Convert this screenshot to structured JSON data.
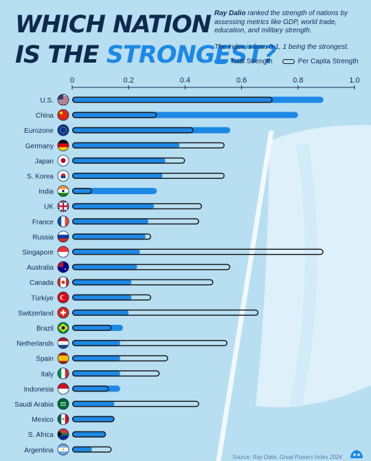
{
  "header": {
    "title_line1": "WHICH NATION",
    "title_line2_a": "IS THE ",
    "title_line2_b": "STRONGEST?",
    "subtitle_author": "Ray Dalio",
    "subtitle_rest": " ranked the strength of nations by assessing metrics like GDP, world trade, education, and military strength.",
    "note": "The index is from 0-1, 1 being the strongest."
  },
  "legend": {
    "total": "Total Strength",
    "per_capita": "Per Capita Strength"
  },
  "source": "Source: Ray Dalio, Great Powers Index 2024",
  "colors": {
    "background": "#b8def2",
    "bar_total": "#1e88e5",
    "bar_outline": "#1a1a1a",
    "text_dark": "#0e2a4c"
  },
  "chart_data": {
    "type": "bar",
    "orientation": "horizontal",
    "xlim": [
      0,
      1.0
    ],
    "ticks": [
      "0",
      "0.2",
      "0.4",
      "0.6",
      "0.8",
      "1.0"
    ],
    "tick_values": [
      0,
      0.2,
      0.4,
      0.6,
      0.8,
      1.0
    ],
    "categories": [
      "U.S.",
      "China",
      "Eurozone",
      "Germany",
      "Japan",
      "S. Korea",
      "India",
      "UK",
      "France",
      "Russia",
      "Singapore",
      "Australia",
      "Canada",
      "Türkiye",
      "Switzerland",
      "Brazil",
      "Netherlands",
      "Spain",
      "Italy",
      "Indonesia",
      "Saudi Arabia",
      "Mexico",
      "S. Africa",
      "Argentina"
    ],
    "series": [
      {
        "name": "Total Strength",
        "values": [
          0.89,
          0.8,
          0.56,
          0.38,
          0.33,
          0.32,
          0.3,
          0.29,
          0.27,
          0.26,
          0.24,
          0.23,
          0.21,
          0.21,
          0.2,
          0.18,
          0.17,
          0.17,
          0.17,
          0.17,
          0.15,
          0.15,
          0.12,
          0.07
        ]
      },
      {
        "name": "Per Capita Strength",
        "values": [
          0.71,
          0.3,
          0.43,
          0.54,
          0.4,
          0.54,
          0.07,
          0.46,
          0.45,
          0.28,
          0.89,
          0.56,
          0.5,
          0.28,
          0.66,
          0.14,
          0.55,
          0.34,
          0.31,
          0.13,
          0.45,
          0.15,
          0.12,
          0.14
        ]
      }
    ],
    "flags": [
      "us",
      "china",
      "eu",
      "germany",
      "japan",
      "skorea",
      "india",
      "uk",
      "france",
      "russia",
      "singapore",
      "australia",
      "canada",
      "turkiye",
      "switzerland",
      "brazil",
      "netherlands",
      "spain",
      "italy",
      "indonesia",
      "saudi",
      "mexico",
      "safrica",
      "argentina"
    ]
  }
}
